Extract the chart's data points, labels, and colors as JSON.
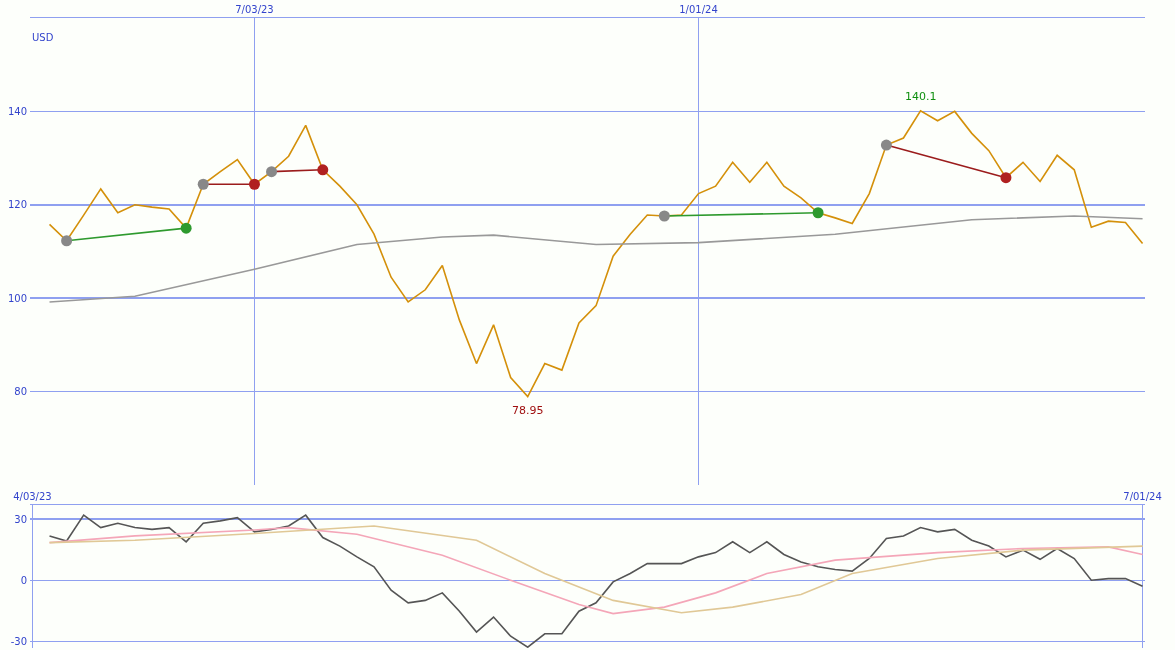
{
  "chart_data": [
    {
      "type": "line",
      "ylabel": "USD",
      "xlim": [
        "2023-04-02",
        "2024-07-02"
      ],
      "xticks": [
        {
          "value": "2023-07-03",
          "label": "7/03/23"
        },
        {
          "value": "2024-01-01",
          "label": "1/01/24"
        }
      ],
      "ylim": [
        60,
        160
      ],
      "yticks": [
        80,
        100,
        120,
        140
      ],
      "grid": true,
      "marker": "none",
      "x": [
        "2023-04-10",
        "2023-04-17",
        "2023-04-24",
        "2023-05-01",
        "2023-05-08",
        "2023-05-15",
        "2023-05-22",
        "2023-05-29",
        "2023-06-05",
        "2023-06-12",
        "2023-06-19",
        "2023-06-26",
        "2023-07-03",
        "2023-07-10",
        "2023-07-17",
        "2023-07-24",
        "2023-07-31",
        "2023-08-07",
        "2023-08-14",
        "2023-08-21",
        "2023-08-28",
        "2023-09-04",
        "2023-09-11",
        "2023-09-18",
        "2023-09-25",
        "2023-10-02",
        "2023-10-09",
        "2023-10-16",
        "2023-10-23",
        "2023-10-30",
        "2023-11-06",
        "2023-11-13",
        "2023-11-20",
        "2023-11-27",
        "2023-12-04",
        "2023-12-11",
        "2023-12-18",
        "2023-12-25",
        "2024-01-01",
        "2024-01-08",
        "2024-01-15",
        "2024-01-22",
        "2024-01-29",
        "2024-02-05",
        "2024-02-12",
        "2024-02-19",
        "2024-02-26",
        "2024-03-04",
        "2024-03-11",
        "2024-03-18",
        "2024-03-25",
        "2024-04-01",
        "2024-04-08",
        "2024-04-15",
        "2024-04-22",
        "2024-04-29",
        "2024-05-06",
        "2024-05-13",
        "2024-05-20",
        "2024-05-27",
        "2024-06-03",
        "2024-06-10",
        "2024-06-17",
        "2024-06-24",
        "2024-07-01"
      ],
      "annotations": [
        {
          "text": "140.1",
          "x": "2024-04-01",
          "y": 140.1
        },
        {
          "text": "78.95",
          "x": "2023-10-23",
          "y": 78.95
        }
      ],
      "series": [
        {
          "color": "#d4900a",
          "values": [
            115.8,
            112.3,
            117.8,
            123.4,
            118.3,
            120,
            119.5,
            119.1,
            115,
            124.4,
            127.1,
            129.7,
            124.4,
            127.1,
            130.4,
            137,
            127.5,
            124,
            120,
            113.7,
            104.5,
            99.2,
            101.8,
            107,
            95.3,
            86,
            94.3,
            83,
            78.95,
            86,
            84.6,
            94.7,
            98.4,
            109,
            113.7,
            117.8,
            117.6,
            117.8,
            122.4,
            124,
            129.1,
            124.8,
            129.1,
            124,
            121.5,
            118.3,
            117.2,
            116,
            122.4,
            132.8,
            134.3,
            140.1,
            138,
            140,
            135.3,
            131.6,
            125.8,
            129.1,
            125,
            130.6,
            127.5,
            115.2,
            116.5,
            116.2,
            111.7
          ]
        },
        {
          "color": "#999999",
          "x": [
            "2023-04-10",
            "2023-05-15",
            "2023-07-03",
            "2023-08-14",
            "2023-09-18",
            "2023-10-09",
            "2023-11-20",
            "2024-01-01",
            "2024-02-26",
            "2024-04-22",
            "2024-06-03",
            "2024-07-01"
          ],
          "values": [
            99.2,
            100.4,
            106.2,
            111.5,
            113.1,
            113.5,
            111.5,
            111.9,
            113.7,
            116.8,
            117.6,
            117
          ]
        },
        {
          "color": "#2e9a2e",
          "marker": "circle",
          "x": [
            "2023-04-17",
            "2023-06-05"
          ],
          "values": [
            112.3,
            115
          ],
          "colors": [
            "#888888",
            "#2e9a2e"
          ]
        },
        {
          "color": "#2e9a2e",
          "marker": "circle",
          "x": [
            "2023-12-18",
            "2024-02-19"
          ],
          "values": [
            117.6,
            118.3
          ],
          "colors": [
            "#888888",
            "#2e9a2e"
          ]
        },
        {
          "color": "#9b1c1c",
          "marker": "circle",
          "x": [
            "2023-06-12",
            "2023-07-03"
          ],
          "values": [
            124.4,
            124.4
          ],
          "colors": [
            "#888888",
            "#b02020"
          ]
        },
        {
          "color": "#9b1c1c",
          "marker": "circle",
          "x": [
            "2023-07-10",
            "2023-07-31"
          ],
          "values": [
            127.1,
            127.5
          ],
          "colors": [
            "#888888",
            "#b02020"
          ]
        },
        {
          "color": "#9b1c1c",
          "marker": "circle",
          "x": [
            "2024-03-18",
            "2024-05-06"
          ],
          "values": [
            132.8,
            125.8
          ],
          "colors": [
            "#888888",
            "#b02020"
          ]
        }
      ]
    },
    {
      "type": "line",
      "xlim": [
        "2023-04-02",
        "2024-07-02"
      ],
      "xticks": [
        {
          "value": "2023-04-03",
          "label": "4/03/23"
        },
        {
          "value": "2024-07-01",
          "label": "7/01/24"
        }
      ],
      "ylim": [
        -33.3,
        37
      ],
      "yticks": [
        -30,
        0,
        30
      ],
      "grid": true,
      "marker": "none",
      "x": [
        "2023-04-10",
        "2023-04-17",
        "2023-04-24",
        "2023-05-01",
        "2023-05-08",
        "2023-05-15",
        "2023-05-22",
        "2023-05-29",
        "2023-06-05",
        "2023-06-12",
        "2023-06-19",
        "2023-06-26",
        "2023-07-03",
        "2023-07-10",
        "2023-07-17",
        "2023-07-24",
        "2023-07-31",
        "2023-08-07",
        "2023-08-14",
        "2023-08-21",
        "2023-08-28",
        "2023-09-04",
        "2023-09-11",
        "2023-09-18",
        "2023-09-25",
        "2023-10-02",
        "2023-10-09",
        "2023-10-16",
        "2023-10-23",
        "2023-10-30",
        "2023-11-06",
        "2023-11-13",
        "2023-11-20",
        "2023-11-27",
        "2023-12-04",
        "2023-12-11",
        "2023-12-18",
        "2023-12-25",
        "2024-01-01",
        "2024-01-08",
        "2024-01-15",
        "2024-01-22",
        "2024-01-29",
        "2024-02-05",
        "2024-02-12",
        "2024-02-19",
        "2024-02-26",
        "2024-03-04",
        "2024-03-11",
        "2024-03-18",
        "2024-03-25",
        "2024-04-01",
        "2024-04-08",
        "2024-04-15",
        "2024-04-22",
        "2024-04-29",
        "2024-05-06",
        "2024-05-13",
        "2024-05-20",
        "2024-05-27",
        "2024-06-03",
        "2024-06-10",
        "2024-06-17",
        "2024-06-24",
        "2024-07-01"
      ],
      "series": [
        {
          "color": "#555555",
          "values": [
            21.8,
            19.3,
            32,
            25.9,
            28,
            25.9,
            25,
            25.9,
            18.9,
            28,
            29.2,
            30.8,
            23.8,
            25,
            26.7,
            32,
            21,
            16.8,
            11.5,
            6.6,
            -4.9,
            -11.1,
            -9.9,
            -6.2,
            -15.2,
            -25.5,
            -18.1,
            -27.5,
            -32.9,
            -26.3,
            -26.3,
            -15.2,
            -11.1,
            -0.8,
            3.3,
            8.2,
            8.2,
            8.2,
            11.5,
            13.6,
            18.9,
            13.6,
            18.9,
            12.7,
            9,
            6.6,
            5.3,
            4.5,
            10.7,
            20.5,
            21.8,
            25.9,
            23.8,
            25,
            19.7,
            16.8,
            11.5,
            14.8,
            10.3,
            15.6,
            10.7,
            0,
            0.8,
            0.8,
            -2.9
          ]
        },
        {
          "color": "#f4a6b8",
          "x": [
            "2023-04-10",
            "2023-05-15",
            "2023-07-03",
            "2023-07-17",
            "2023-08-14",
            "2023-09-18",
            "2023-10-16",
            "2023-11-13",
            "2023-11-27",
            "2023-12-18",
            "2024-01-08",
            "2024-01-29",
            "2024-02-26",
            "2024-04-08",
            "2024-05-13",
            "2024-06-17",
            "2024-07-01"
          ],
          "values": [
            18.5,
            21.8,
            24.7,
            25.9,
            22.6,
            12.3,
            0,
            -11.9,
            -16.4,
            -13.2,
            -6.2,
            3.3,
            9.9,
            13.6,
            15.6,
            16.4,
            12.7
          ]
        },
        {
          "color": "#e0c896",
          "x": [
            "2023-04-10",
            "2023-05-15",
            "2023-07-03",
            "2023-08-21",
            "2023-10-02",
            "2023-10-30",
            "2023-11-27",
            "2023-12-25",
            "2024-01-15",
            "2024-02-12",
            "2024-03-04",
            "2024-04-08",
            "2024-05-13",
            "2024-07-01"
          ],
          "values": [
            18.5,
            19.7,
            23,
            26.7,
            19.7,
            3.3,
            -9.9,
            -16,
            -13.2,
            -7,
            3.3,
            10.7,
            14.8,
            16.8
          ]
        }
      ]
    }
  ]
}
